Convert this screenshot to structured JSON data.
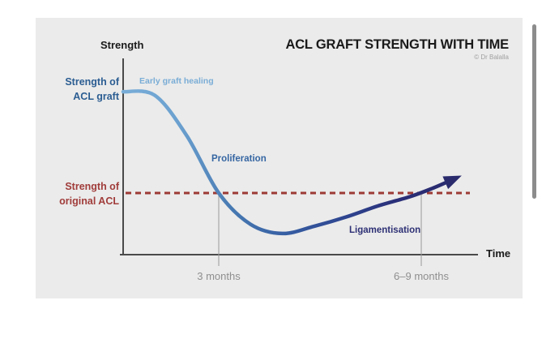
{
  "header": {
    "title": "ACL GRAFT STRENGTH WITH TIME",
    "attribution": "© Dr Balalla"
  },
  "axes": {
    "y_label": "Strength",
    "x_label": "Time"
  },
  "labels": {
    "graft": "Strength of\nACL graft",
    "original": "Strength of\noriginal ACL",
    "early": "Early graft healing",
    "proliferation": "Proliferation",
    "ligamentisation": "Ligamentisation",
    "marker_3m": "3 months",
    "marker_69m": "6–9 months"
  },
  "colors": {
    "panel_background": "#ebebeb",
    "title_text": "#1a1a1a",
    "axis_line": "#4a4a4a",
    "axis_label_text": "#1a1a1a",
    "graft_label_text": "#2b5d92",
    "early_label_text": "#7aadd6",
    "proliferation_label_text": "#3566a2",
    "ligamentisation_label_text": "#2e3175",
    "original_acl_text": "#a03d3b",
    "dashed_line": "#9c3a35",
    "marker_text": "#8f8f8f",
    "tick_line": "#9a9a9a",
    "attribution_text": "#a0a0a0",
    "scrollbar": "#8c8c8c",
    "arrow_fill": "#292b6d",
    "curve_gradient": [
      "#79add8",
      "#6aa0cf",
      "#4779b2",
      "#365da2",
      "#2e4590",
      "#2a2f78",
      "#292b6d"
    ]
  },
  "chart_data": {
    "type": "line",
    "title": "ACL GRAFT STRENGTH WITH TIME",
    "xlabel": "Time",
    "ylabel": "Strength",
    "x_unit": "months",
    "x": [
      0,
      1,
      2,
      3,
      4,
      5,
      6,
      7,
      8,
      9,
      9.7,
      10.3
    ],
    "series": [
      {
        "name": "Strength of ACL graft",
        "values": [
          1.55,
          1.53,
          1.31,
          1.0,
          0.83,
          0.78,
          0.82,
          0.87,
          0.93,
          0.98,
          1.025,
          1.07
        ],
        "note": "strength relative to original ACL = 1.0; curve ends in an arrow"
      }
    ],
    "reference_line": {
      "label": "Strength of original ACL",
      "value": 1.0,
      "style": "dashed"
    },
    "phase_annotations": [
      {
        "label": "Early graft healing",
        "x": 1
      },
      {
        "label": "Proliferation",
        "x": 3
      },
      {
        "label": "Ligamentisation",
        "x": 7.5
      }
    ],
    "x_markers": [
      {
        "label": "3 months",
        "x": 3
      },
      {
        "label": "6–9 months",
        "x": 9.36
      }
    ],
    "axis_ranges": {
      "x_months": [
        0,
        11.2
      ],
      "y_relative": [
        0.7,
        1.75
      ]
    },
    "grid": false,
    "legend": false,
    "arrow_end": true
  }
}
